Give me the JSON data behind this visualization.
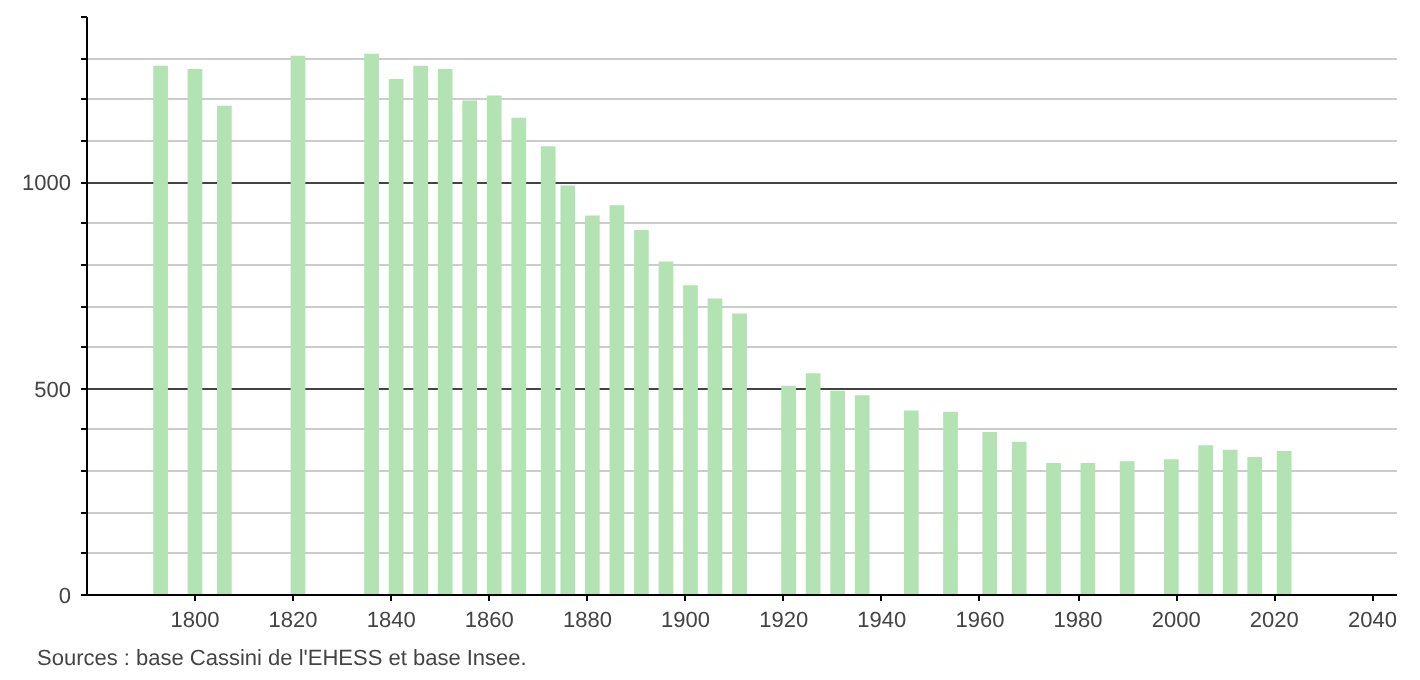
{
  "chart_data": {
    "type": "bar",
    "x": [
      1793,
      1800,
      1806,
      1821,
      1836,
      1841,
      1846,
      1851,
      1856,
      1861,
      1866,
      1872,
      1876,
      1881,
      1886,
      1891,
      1896,
      1901,
      1906,
      1911,
      1921,
      1926,
      1931,
      1936,
      1946,
      1954,
      1962,
      1968,
      1975,
      1982,
      1990,
      1999,
      2006,
      2011,
      2016,
      2022
    ],
    "values": [
      1282,
      1274,
      1185,
      1306,
      1311,
      1250,
      1282,
      1274,
      1198,
      1210,
      1156,
      1087,
      992,
      919,
      944,
      884,
      808,
      750,
      718,
      682,
      507,
      537,
      495,
      484,
      447,
      444,
      395,
      371,
      320,
      320,
      324,
      329,
      363,
      352,
      334,
      349
    ],
    "color": "#b3e3b3",
    "xlim": [
      1778,
      2045
    ],
    "xticks": [
      1800,
      1820,
      1840,
      1860,
      1880,
      1900,
      1920,
      1940,
      1960,
      1980,
      2000,
      2020,
      2040
    ],
    "ylim": [
      0,
      1400
    ],
    "yticks": [
      0,
      {
        "value": 100,
        "label": null
      },
      {
        "value": 200,
        "label": null
      },
      {
        "value": 300,
        "label": null
      },
      {
        "value": 400,
        "label": null
      },
      500,
      {
        "value": 600,
        "label": null
      },
      {
        "value": 700,
        "label": null
      },
      {
        "value": 800,
        "label": null
      },
      {
        "value": 900,
        "label": null
      },
      1000,
      {
        "value": 1100,
        "label": null
      },
      {
        "value": 1200,
        "label": null
      },
      {
        "value": 1300,
        "label": null
      },
      {
        "value": 1400,
        "label": null
      }
    ],
    "grid": "y",
    "annotations": [
      "Sources : base Cassini de l'EHESS et base Insee."
    ]
  }
}
